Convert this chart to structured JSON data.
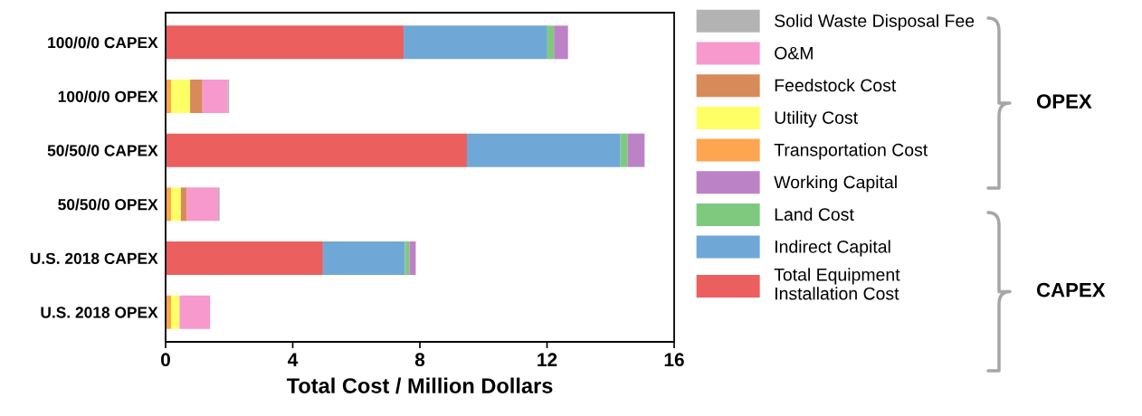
{
  "chart_data": {
    "type": "bar",
    "orientation": "horizontal",
    "stacked": true,
    "categories": [
      "100/0/0 CAPEX",
      "100/0/0 OPEX",
      "50/50/0 CAPEX",
      "50/50/0 OPEX",
      "U.S. 2018 CAPEX",
      "U.S. 2018 OPEX"
    ],
    "series": [
      {
        "name": "Total Equipment\nInstallation Cost",
        "color": "#eb5f5f",
        "values": [
          7.49,
          null,
          9.48,
          null,
          4.95,
          null
        ]
      },
      {
        "name": "Indirect Capital",
        "color": "#6fa8d6",
        "values": [
          4.52,
          null,
          4.83,
          null,
          2.58,
          null
        ]
      },
      {
        "name": "Land Cost",
        "color": "#7fc97f",
        "values": [
          0.21,
          null,
          0.23,
          null,
          0.14,
          null
        ]
      },
      {
        "name": "Working Capital",
        "color": "#bb83c6",
        "values": [
          0.44,
          null,
          0.53,
          null,
          0.2,
          null
        ]
      },
      {
        "name": "Transportation Cost",
        "color": "#fda54f",
        "values": [
          null,
          0.17,
          null,
          0.17,
          null,
          0.17
        ]
      },
      {
        "name": "Utility Cost",
        "color": "#ffff66",
        "values": [
          null,
          0.6,
          null,
          0.31,
          null,
          0.27
        ]
      },
      {
        "name": "Feedstock Cost",
        "color": "#d98a5a",
        "values": [
          null,
          0.39,
          null,
          0.19,
          null,
          null
        ]
      },
      {
        "name": "O&M",
        "color": "#f799cc",
        "values": [
          null,
          0.79,
          null,
          0.98,
          null,
          0.96
        ]
      },
      {
        "name": "Solid Waste Disposal Fee",
        "color": "#b3b3b3",
        "values": [
          null,
          0.05,
          null,
          0.05,
          null,
          null
        ]
      }
    ],
    "xlabel": "Total Cost / Million Dollars",
    "xlim": [
      0,
      16
    ],
    "xticks": [
      0,
      4,
      8,
      12,
      16
    ],
    "legend": "right",
    "grid": false,
    "annotations": [
      "OPEX",
      "CAPEX"
    ]
  }
}
